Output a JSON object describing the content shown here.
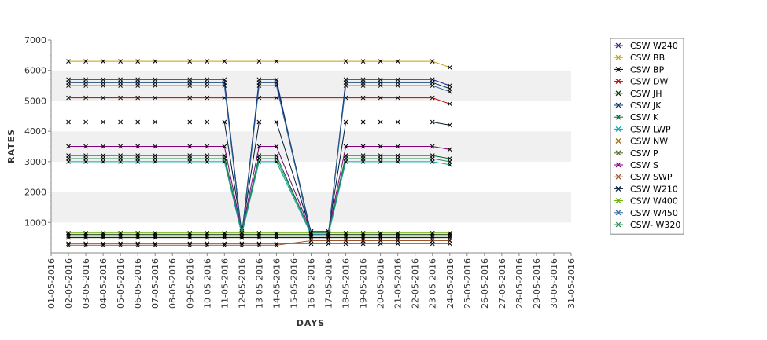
{
  "chart_data": {
    "type": "line",
    "xlabel": "DAYS",
    "ylabel": "RATES",
    "ylim": [
      0,
      7000
    ],
    "yticks": [
      1000,
      2000,
      3000,
      4000,
      5000,
      6000,
      7000
    ],
    "grid": "alternating horizontal bands",
    "band_colors": [
      "#ffffff",
      "#f0f0f0"
    ],
    "legend_position": "right",
    "categories": [
      "01-05-2016",
      "02-05-2016",
      "03-05-2016",
      "04-05-2016",
      "05-05-2016",
      "06-05-2016",
      "07-05-2016",
      "08-05-2016",
      "09-05-2016",
      "10-05-2016",
      "11-05-2016",
      "12-05-2016",
      "13-05-2016",
      "14-05-2016",
      "15-05-2016",
      "16-05-2016",
      "17-05-2016",
      "18-05-2016",
      "19-05-2016",
      "20-05-2016",
      "21-05-2016",
      "22-05-2016",
      "23-05-2016",
      "24-05-2016",
      "25-05-2016",
      "26-05-2016",
      "27-05-2016",
      "28-05-2016",
      "29-05-2016",
      "30-05-2016",
      "31-05-2016"
    ],
    "series": [
      {
        "name": "CSW  W240",
        "color": "#1f1f8f",
        "values": [
          null,
          5700,
          5700,
          5700,
          5700,
          5700,
          5700,
          null,
          5700,
          5700,
          5700,
          550,
          5700,
          5700,
          null,
          500,
          500,
          5700,
          5700,
          5700,
          5700,
          null,
          5700,
          5500,
          null,
          null,
          null,
          null,
          null,
          null,
          null
        ]
      },
      {
        "name": "CSW BB",
        "color": "#c8a000",
        "values": [
          null,
          6300,
          6300,
          6300,
          6300,
          6300,
          6300,
          null,
          6300,
          6300,
          6300,
          null,
          6300,
          6300,
          null,
          null,
          null,
          6300,
          6300,
          6300,
          6300,
          null,
          6300,
          6100,
          null,
          null,
          null,
          null,
          null,
          null,
          null
        ]
      },
      {
        "name": "CSW BP",
        "color": "#000000",
        "values": [
          null,
          500,
          500,
          500,
          500,
          500,
          500,
          null,
          500,
          500,
          500,
          500,
          500,
          500,
          null,
          500,
          500,
          500,
          500,
          500,
          500,
          null,
          500,
          500,
          null,
          null,
          null,
          null,
          null,
          null,
          null
        ]
      },
      {
        "name": "CSW DW",
        "color": "#c00000",
        "values": [
          null,
          5100,
          5100,
          5100,
          5100,
          5100,
          5100,
          null,
          5100,
          5100,
          5100,
          null,
          5100,
          5100,
          null,
          null,
          null,
          5100,
          5100,
          5100,
          5100,
          null,
          5100,
          4900,
          null,
          null,
          null,
          null,
          null,
          null,
          null
        ]
      },
      {
        "name": "CSW JH",
        "color": "#003000",
        "values": [
          null,
          600,
          600,
          600,
          600,
          600,
          600,
          null,
          600,
          600,
          600,
          600,
          600,
          600,
          null,
          600,
          600,
          600,
          600,
          600,
          600,
          null,
          600,
          600,
          null,
          null,
          null,
          null,
          null,
          null,
          null
        ]
      },
      {
        "name": "CSW JK",
        "color": "#003366",
        "values": [
          null,
          5600,
          5600,
          5600,
          5600,
          5600,
          5600,
          null,
          5600,
          5600,
          5600,
          600,
          5600,
          5600,
          null,
          650,
          650,
          5600,
          5600,
          5600,
          5600,
          null,
          5600,
          5400,
          null,
          null,
          null,
          null,
          null,
          null,
          null
        ]
      },
      {
        "name": "CSW K",
        "color": "#006633",
        "values": [
          null,
          3200,
          3200,
          3200,
          3200,
          3200,
          3200,
          null,
          3200,
          3200,
          3200,
          650,
          3200,
          3200,
          null,
          650,
          650,
          3200,
          3200,
          3200,
          3200,
          null,
          3200,
          3100,
          null,
          null,
          null,
          null,
          null,
          null,
          null
        ]
      },
      {
        "name": "CSW LWP",
        "color": "#00aaaa",
        "values": [
          null,
          3000,
          3000,
          3000,
          3000,
          3000,
          3000,
          null,
          3000,
          3000,
          3000,
          600,
          3000,
          3000,
          null,
          600,
          600,
          3000,
          3000,
          3000,
          3000,
          null,
          3000,
          2900,
          null,
          null,
          null,
          null,
          null,
          null,
          null
        ]
      },
      {
        "name": "CSW NW",
        "color": "#996600",
        "values": [
          null,
          300,
          300,
          300,
          300,
          300,
          300,
          null,
          300,
          300,
          300,
          300,
          300,
          300,
          null,
          300,
          300,
          300,
          300,
          300,
          300,
          null,
          300,
          300,
          null,
          null,
          null,
          null,
          null,
          null,
          null
        ]
      },
      {
        "name": "CSW P",
        "color": "#556b2f",
        "values": [
          null,
          550,
          550,
          550,
          550,
          550,
          550,
          null,
          550,
          550,
          550,
          550,
          550,
          550,
          null,
          550,
          550,
          550,
          550,
          550,
          550,
          null,
          550,
          550,
          null,
          null,
          null,
          null,
          null,
          null,
          null
        ]
      },
      {
        "name": "CSW S",
        "color": "#800080",
        "values": [
          null,
          3500,
          3500,
          3500,
          3500,
          3500,
          3500,
          null,
          3500,
          3500,
          3500,
          700,
          3500,
          3500,
          null,
          700,
          700,
          3500,
          3500,
          3500,
          3500,
          null,
          3500,
          3400,
          null,
          null,
          null,
          null,
          null,
          null,
          null
        ]
      },
      {
        "name": "CSW SWP",
        "color": "#a0522d",
        "values": [
          null,
          250,
          250,
          250,
          250,
          250,
          250,
          null,
          250,
          250,
          250,
          250,
          250,
          250,
          null,
          400,
          400,
          400,
          400,
          400,
          400,
          null,
          400,
          400,
          null,
          null,
          null,
          null,
          null,
          null,
          null
        ]
      },
      {
        "name": "CSW W210",
        "color": "#001a33",
        "values": [
          null,
          4300,
          4300,
          4300,
          4300,
          4300,
          4300,
          null,
          4300,
          4300,
          4300,
          700,
          4300,
          4300,
          null,
          700,
          700,
          4300,
          4300,
          4300,
          4300,
          null,
          4300,
          4200,
          null,
          null,
          null,
          null,
          null,
          null,
          null
        ]
      },
      {
        "name": "CSW W400",
        "color": "#66aa00",
        "values": [
          null,
          650,
          650,
          650,
          650,
          650,
          650,
          null,
          650,
          650,
          650,
          650,
          650,
          650,
          null,
          650,
          650,
          650,
          650,
          650,
          650,
          null,
          650,
          650,
          null,
          null,
          null,
          null,
          null,
          null,
          null
        ]
      },
      {
        "name": "CSW W450",
        "color": "#336699",
        "values": [
          null,
          5500,
          5500,
          5500,
          5500,
          5500,
          5500,
          null,
          5500,
          5500,
          5500,
          500,
          5500,
          5500,
          null,
          600,
          600,
          5500,
          5500,
          5500,
          5500,
          null,
          5500,
          5300,
          null,
          null,
          null,
          null,
          null,
          null,
          null
        ]
      },
      {
        "name": "CSW- W320",
        "color": "#2e8b57",
        "values": [
          null,
          3100,
          3100,
          3100,
          3100,
          3100,
          3100,
          null,
          3100,
          3100,
          3100,
          650,
          3100,
          3100,
          null,
          650,
          650,
          3100,
          3100,
          3100,
          3100,
          null,
          3100,
          3000,
          null,
          null,
          null,
          null,
          null,
          null,
          null
        ]
      }
    ]
  }
}
